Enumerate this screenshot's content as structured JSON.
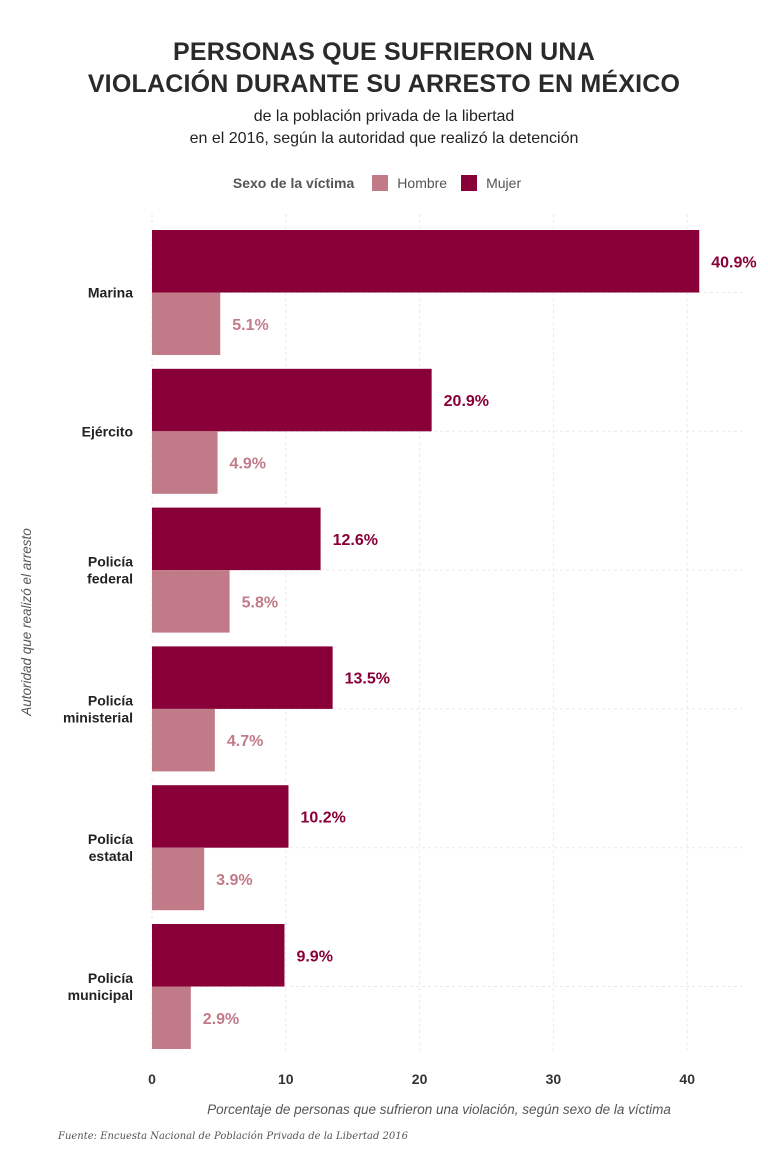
{
  "title_lines": [
    "PERSONAS QUE SUFRIERON UNA",
    "VIOLACIÓN DURANTE SU ARRESTO EN MÉXICO"
  ],
  "subtitle_lines": [
    "de la población privada de la libertad",
    "en el 2016, según la autoridad que realizó la detención"
  ],
  "legend": {
    "title": "Sexo de la víctima",
    "items": [
      {
        "label": "Hombre",
        "color": "#c17b88"
      },
      {
        "label": "Mujer",
        "color": "#880037"
      }
    ]
  },
  "source": "Fuente: Encuesta Nacional de Población Privada de la Libertad 2016",
  "chart_data": {
    "type": "bar",
    "orientation": "horizontal",
    "categories": [
      [
        "Marina"
      ],
      [
        "Ejército"
      ],
      [
        "Policía",
        "federal"
      ],
      [
        "Policía",
        "ministerial"
      ],
      [
        "Policía",
        "estatal"
      ],
      [
        "Policía",
        "municipal"
      ]
    ],
    "series": [
      {
        "name": "Mujer",
        "color": "#880037",
        "values": [
          40.9,
          20.9,
          12.6,
          13.5,
          10.2,
          9.9
        ],
        "labels": [
          "40.9%",
          "20.9%",
          "12.6%",
          "13.5%",
          "10.2%",
          "9.9%"
        ]
      },
      {
        "name": "Hombre",
        "color": "#c17b88",
        "values": [
          5.1,
          4.9,
          5.8,
          4.7,
          3.9,
          2.9
        ],
        "labels": [
          "5.1%",
          "4.9%",
          "5.8%",
          "4.7%",
          "3.9%",
          "2.9%"
        ]
      }
    ],
    "xlabel": "Porcentaje de personas que sufrieron una violación, según sexo de la víctima",
    "ylabel": "Autoridad que realizó el arresto",
    "xlim": [
      0,
      44
    ],
    "xticks": [
      0,
      10,
      20,
      30,
      40
    ],
    "grid": true
  }
}
